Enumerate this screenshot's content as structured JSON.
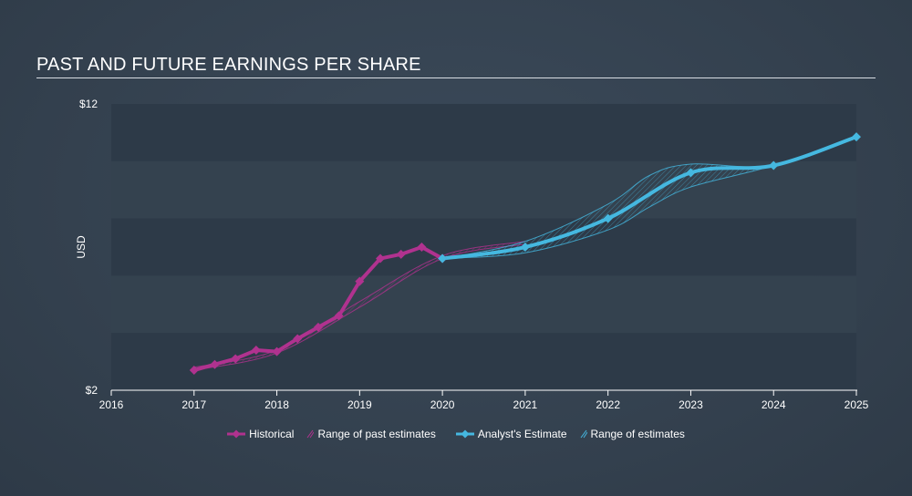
{
  "title": "PAST AND FUTURE EARNINGS PER SHARE",
  "colors": {
    "historical": "#b0328f",
    "estimate": "#45b8e0",
    "band_dark": "#2d3a48",
    "band_light": "#34424f"
  },
  "legend": {
    "historical": "Historical",
    "past_range": "Range of past estimates",
    "estimate": "Analyst's Estimate",
    "future_range": "Range of estimates"
  },
  "chart_data": {
    "type": "line",
    "title": "PAST AND FUTURE EARNINGS PER SHARE",
    "xlabel": "",
    "ylabel": "USD",
    "xlim": [
      2016,
      2025
    ],
    "ylim": [
      2,
      12
    ],
    "y_tick_labels": [
      "$12",
      "$2"
    ],
    "y_ticks": [
      12,
      2
    ],
    "x_ticks": [
      2016,
      2017,
      2018,
      2019,
      2020,
      2021,
      2022,
      2023,
      2024,
      2025
    ],
    "grid": true,
    "legend_position": "bottom",
    "series": [
      {
        "name": "Historical",
        "x": [
          2017.0,
          2017.25,
          2017.5,
          2017.75,
          2018.0,
          2018.25,
          2018.5,
          2018.75,
          2019.0,
          2019.25,
          2019.5,
          2019.75,
          2020.0
        ],
        "y": [
          2.7,
          2.9,
          3.1,
          3.4,
          3.35,
          3.8,
          4.2,
          4.6,
          5.8,
          6.6,
          6.75,
          7.0,
          6.6
        ]
      },
      {
        "name": "Analyst's Estimate",
        "x": [
          2020.0,
          2021.0,
          2022.0,
          2023.0,
          2024.0,
          2025.0
        ],
        "y": [
          6.6,
          7.0,
          8.0,
          9.6,
          9.85,
          10.85
        ]
      },
      {
        "name": "Range of past estimates",
        "x": [
          2017.0,
          2018.0,
          2019.0,
          2020.0,
          2021.0
        ],
        "low": [
          2.7,
          3.3,
          4.9,
          6.6,
          7.1
        ],
        "high": [
          2.8,
          3.4,
          5.1,
          6.7,
          7.2
        ]
      },
      {
        "name": "Range of estimates",
        "x": [
          2020.0,
          2021.0,
          2022.0,
          2022.5,
          2023.0,
          2024.0,
          2025.0
        ],
        "low": [
          6.6,
          6.8,
          7.6,
          8.4,
          9.1,
          9.85,
          10.85
        ],
        "high": [
          6.6,
          7.2,
          8.5,
          9.5,
          9.9,
          9.85,
          10.85
        ]
      }
    ]
  }
}
